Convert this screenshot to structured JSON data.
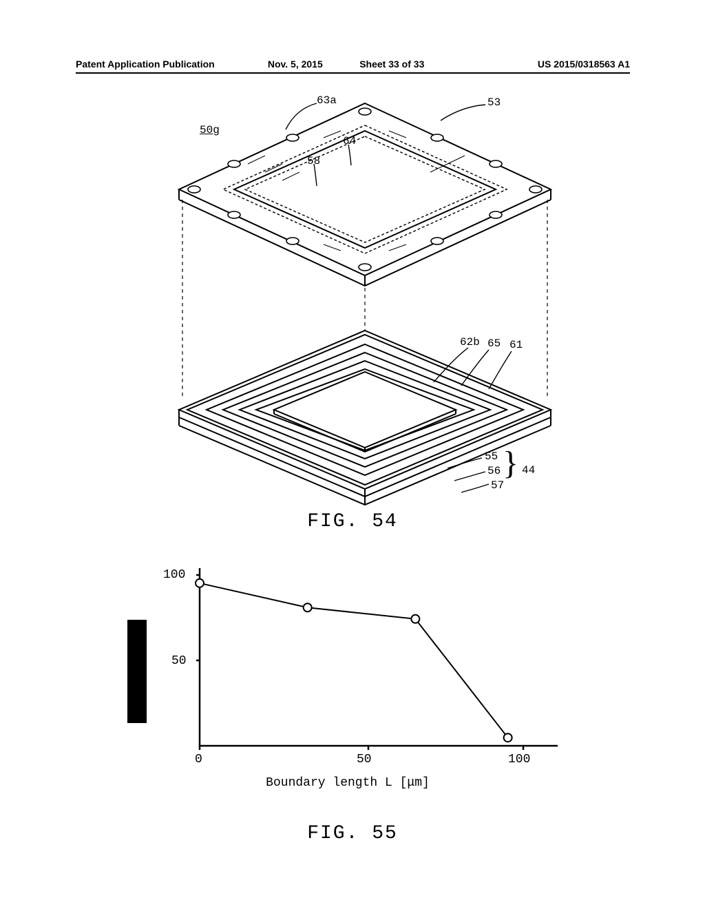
{
  "header": {
    "left": "Patent Application Publication",
    "date": "Nov. 5, 2015",
    "sheet": "Sheet 33 of 33",
    "pubno": "US 2015/0318563 A1"
  },
  "fig54": {
    "label": "FIG. 54",
    "assembly_ref": "50g",
    "refs_top": {
      "r63a": "63a",
      "r53": "53",
      "r64": "64",
      "r58": "58"
    },
    "refs_mid": {
      "r62b": "62b",
      "r65": "65",
      "r61": "61"
    },
    "refs_bottom": {
      "r55": "55",
      "r56": "56",
      "r57": "57",
      "group": "44"
    }
  },
  "fig55": {
    "label": "FIG. 55",
    "type": "line",
    "x_label": "Boundary length L [μm]",
    "x_values": [
      0,
      35,
      70,
      100
    ],
    "y_values": [
      100,
      85,
      78,
      5
    ],
    "xlim": [
      0,
      105
    ],
    "ylim": [
      0,
      105
    ],
    "xticks": [
      0,
      50,
      100
    ],
    "yticks": [
      50,
      100
    ],
    "xtick_labels": [
      "0",
      "50",
      "100"
    ],
    "ytick_labels": [
      "50",
      "100"
    ],
    "line_color": "#000000",
    "line_width": 2,
    "marker": "circle-open",
    "marker_size": 6,
    "marker_stroke": "#000000",
    "marker_fill": "#ffffff",
    "axis_color": "#000000",
    "background_color": "#ffffff",
    "label_fontsize": 18,
    "tick_fontsize": 18,
    "font_family": "Courier New"
  }
}
